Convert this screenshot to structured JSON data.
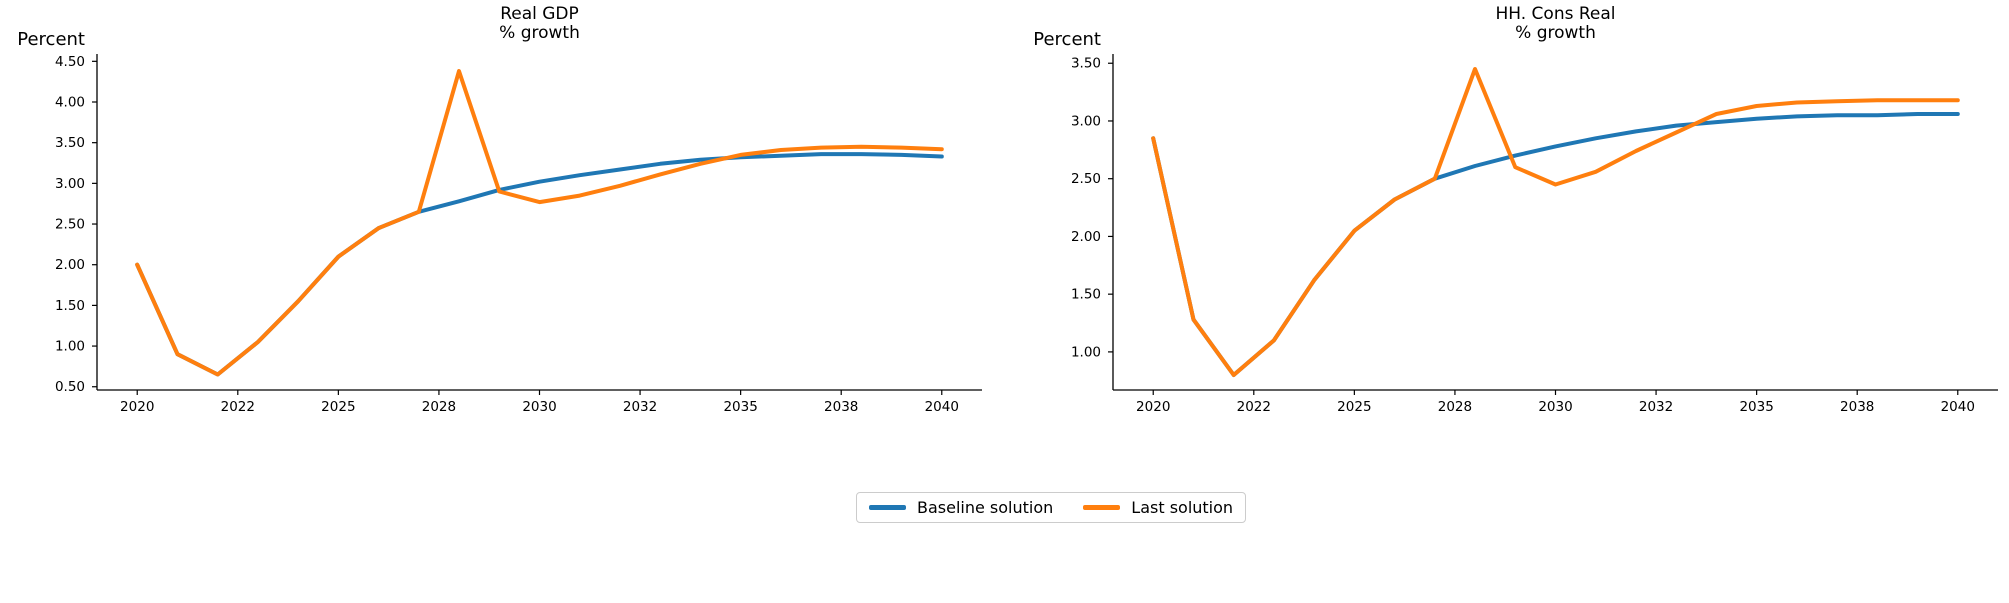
{
  "figure": {
    "background_color": "#ffffff",
    "text_color": "#000000",
    "legend": {
      "position": "lower center",
      "items": [
        {
          "label": "Baseline solution",
          "color": "#1f77b4"
        },
        {
          "label": "Last solution",
          "color": "#ff7f0e"
        }
      ]
    }
  },
  "chart_data": [
    {
      "type": "line",
      "title_line1": "Real GDP",
      "title_line2": "% growth",
      "ylabel": "Percent",
      "grid": false,
      "x_categories": [
        2020,
        2021,
        2022,
        2023,
        2024,
        2025,
        2026,
        2027,
        2028,
        2029,
        2030,
        2031,
        2032,
        2033,
        2034,
        2035,
        2036,
        2037,
        2038,
        2039,
        2040
      ],
      "xtick_labels": [
        "2020",
        "2022",
        "2025",
        "2028",
        "2030",
        "2032",
        "2035",
        "2038",
        "2040"
      ],
      "yticks": [
        0.5,
        1.0,
        1.5,
        2.0,
        2.5,
        3.0,
        3.5,
        4.0,
        4.5
      ],
      "ytick_labels": [
        "0.50",
        "1.00",
        "1.50",
        "2.00",
        "2.50",
        "3.00",
        "3.50",
        "4.00",
        "4.50"
      ],
      "ylim": [
        0.46,
        4.59
      ],
      "series": [
        {
          "name": "Baseline solution",
          "color": "#1f77b4",
          "values": [
            2.0,
            0.9,
            0.65,
            1.05,
            1.55,
            2.1,
            2.45,
            2.65,
            2.78,
            2.92,
            3.02,
            3.1,
            3.17,
            3.24,
            3.29,
            3.32,
            3.34,
            3.36,
            3.36,
            3.35,
            3.33
          ]
        },
        {
          "name": "Last solution",
          "color": "#ff7f0e",
          "values": [
            2.0,
            0.9,
            0.65,
            1.05,
            1.55,
            2.1,
            2.45,
            2.65,
            4.38,
            2.9,
            2.77,
            2.85,
            2.97,
            3.11,
            3.24,
            3.35,
            3.41,
            3.44,
            3.45,
            3.44,
            3.42
          ]
        }
      ]
    },
    {
      "type": "line",
      "title_line1": "HH. Cons Real",
      "title_line2": "% growth",
      "ylabel": "Percent",
      "grid": false,
      "x_categories": [
        2020,
        2021,
        2022,
        2023,
        2024,
        2025,
        2026,
        2027,
        2028,
        2029,
        2030,
        2031,
        2032,
        2033,
        2034,
        2035,
        2036,
        2037,
        2038,
        2039,
        2040
      ],
      "xtick_labels": [
        "2020",
        "2022",
        "2025",
        "2028",
        "2030",
        "2032",
        "2035",
        "2038",
        "2040"
      ],
      "yticks": [
        1.0,
        1.5,
        2.0,
        2.5,
        3.0,
        3.5
      ],
      "ytick_labels": [
        "1.00",
        "1.50",
        "2.00",
        "2.50",
        "3.00",
        "3.50"
      ],
      "ylim": [
        0.67,
        3.58
      ],
      "series": [
        {
          "name": "Baseline solution",
          "color": "#1f77b4",
          "values": [
            2.85,
            1.28,
            0.8,
            1.1,
            1.62,
            2.05,
            2.32,
            2.5,
            2.61,
            2.7,
            2.78,
            2.85,
            2.91,
            2.96,
            2.99,
            3.02,
            3.04,
            3.05,
            3.05,
            3.06,
            3.06
          ]
        },
        {
          "name": "Last solution",
          "color": "#ff7f0e",
          "values": [
            2.85,
            1.28,
            0.8,
            1.1,
            1.62,
            2.05,
            2.32,
            2.5,
            3.45,
            2.6,
            2.45,
            2.56,
            2.74,
            2.9,
            3.06,
            3.13,
            3.16,
            3.17,
            3.18,
            3.18,
            3.18
          ]
        }
      ]
    }
  ]
}
